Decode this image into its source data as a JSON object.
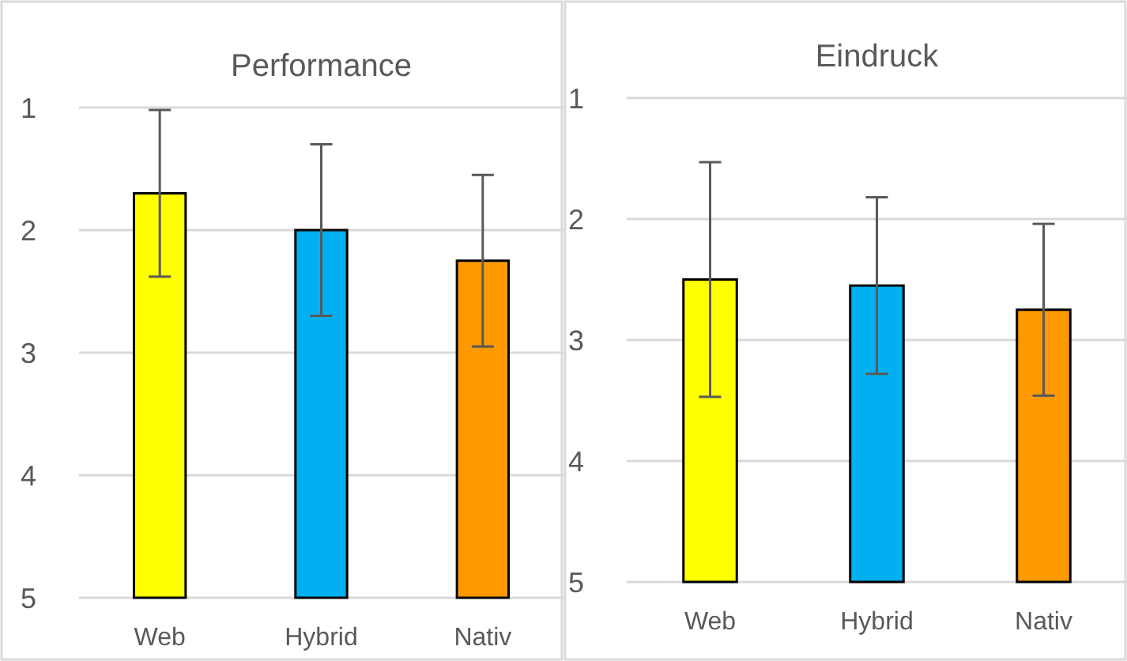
{
  "chart_data": [
    {
      "type": "bar",
      "title": "Performance",
      "categories": [
        "Web",
        "Hybrid",
        "Nativ"
      ],
      "base": [
        5,
        5,
        5
      ],
      "values": [
        -3.3,
        -3.0,
        -2.75
      ],
      "colors": [
        "#ffff00",
        "#00b0f0",
        "#ff9900"
      ],
      "errors": [
        0.68,
        0.7,
        0.7
      ],
      "ylim": [
        5,
        1
      ],
      "yticks": [
        1,
        2,
        3,
        4,
        5
      ],
      "grid": "y"
    },
    {
      "type": "bar",
      "title": "Eindruck",
      "categories": [
        "Web",
        "Hybrid",
        "Nativ"
      ],
      "base": [
        5,
        5,
        5
      ],
      "values": [
        -2.5,
        -2.45,
        -2.25
      ],
      "colors": [
        "#ffff00",
        "#00b0f0",
        "#ff9900"
      ],
      "errors": [
        0.97,
        0.73,
        0.71
      ],
      "ylim": [
        5,
        1
      ],
      "yticks": [
        1,
        2,
        3,
        4,
        5
      ],
      "grid": "y"
    }
  ]
}
